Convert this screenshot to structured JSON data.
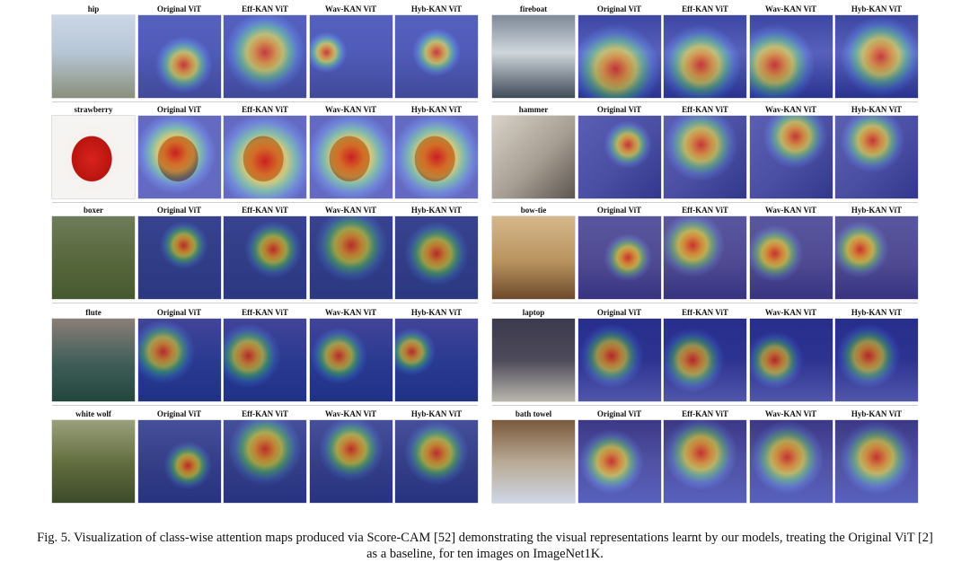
{
  "column_headers": [
    "Original ViT",
    "Eff-KAN ViT",
    "Wav-KAN ViT",
    "Hyb-KAN ViT"
  ],
  "panels": [
    {
      "rows": [
        {
          "class_label": "hip",
          "scene": "plant",
          "cams": [
            [
              0.55,
              0.6,
              0.35
            ],
            [
              0.5,
              0.45,
              0.5
            ],
            [
              0.2,
              0.45,
              0.25
            ],
            [
              0.5,
              0.45,
              0.3
            ]
          ]
        },
        {
          "class_label": "strawberry",
          "scene": "fruit",
          "cams": [
            [
              0.45,
              0.45,
              0.5
            ],
            [
              0.5,
              0.55,
              0.6
            ],
            [
              0.5,
              0.5,
              0.55
            ],
            [
              0.5,
              0.5,
              0.55
            ]
          ]
        },
        {
          "class_label": "boxer",
          "scene": "dog",
          "cams": [
            [
              0.55,
              0.35,
              0.3
            ],
            [
              0.6,
              0.4,
              0.35
            ],
            [
              0.5,
              0.35,
              0.45
            ],
            [
              0.5,
              0.45,
              0.4
            ]
          ]
        },
        {
          "class_label": "flute",
          "scene": "people",
          "cams": [
            [
              0.3,
              0.4,
              0.4
            ],
            [
              0.3,
              0.45,
              0.4
            ],
            [
              0.35,
              0.45,
              0.35
            ],
            [
              0.2,
              0.4,
              0.3
            ]
          ]
        },
        {
          "class_label": "white wolf",
          "scene": "wolf",
          "cams": [
            [
              0.6,
              0.55,
              0.3
            ],
            [
              0.5,
              0.35,
              0.45
            ],
            [
              0.5,
              0.35,
              0.4
            ],
            [
              0.5,
              0.4,
              0.4
            ]
          ]
        }
      ]
    },
    {
      "rows": [
        {
          "class_label": "fireboat",
          "scene": "boat",
          "cams": [
            [
              0.45,
              0.65,
              0.55
            ],
            [
              0.45,
              0.6,
              0.5
            ],
            [
              0.3,
              0.6,
              0.5
            ],
            [
              0.55,
              0.5,
              0.5
            ]
          ]
        },
        {
          "class_label": "hammer",
          "scene": "hammer",
          "cams": [
            [
              0.6,
              0.35,
              0.3
            ],
            [
              0.45,
              0.35,
              0.45
            ],
            [
              0.55,
              0.25,
              0.4
            ],
            [
              0.45,
              0.3,
              0.4
            ]
          ]
        },
        {
          "class_label": "bow-tie",
          "scene": "bowtie",
          "cams": [
            [
              0.6,
              0.5,
              0.3
            ],
            [
              0.35,
              0.35,
              0.4
            ],
            [
              0.3,
              0.45,
              0.35
            ],
            [
              0.3,
              0.4,
              0.35
            ]
          ]
        },
        {
          "class_label": "laptop",
          "scene": "laptop",
          "cams": [
            [
              0.4,
              0.45,
              0.4
            ],
            [
              0.35,
              0.5,
              0.4
            ],
            [
              0.3,
              0.5,
              0.35
            ],
            [
              0.4,
              0.45,
              0.4
            ]
          ]
        },
        {
          "class_label": "bath towel",
          "scene": "towel",
          "cams": [
            [
              0.4,
              0.5,
              0.4
            ],
            [
              0.45,
              0.4,
              0.45
            ],
            [
              0.45,
              0.45,
              0.45
            ],
            [
              0.5,
              0.45,
              0.45
            ]
          ]
        }
      ]
    }
  ],
  "caption": "Fig. 5. Visualization of class-wise attention maps produced via Score-CAM [52] demonstrating the visual representations learnt by our models, treating the Original ViT [2] as a baseline, for ten images on ImageNet1K."
}
